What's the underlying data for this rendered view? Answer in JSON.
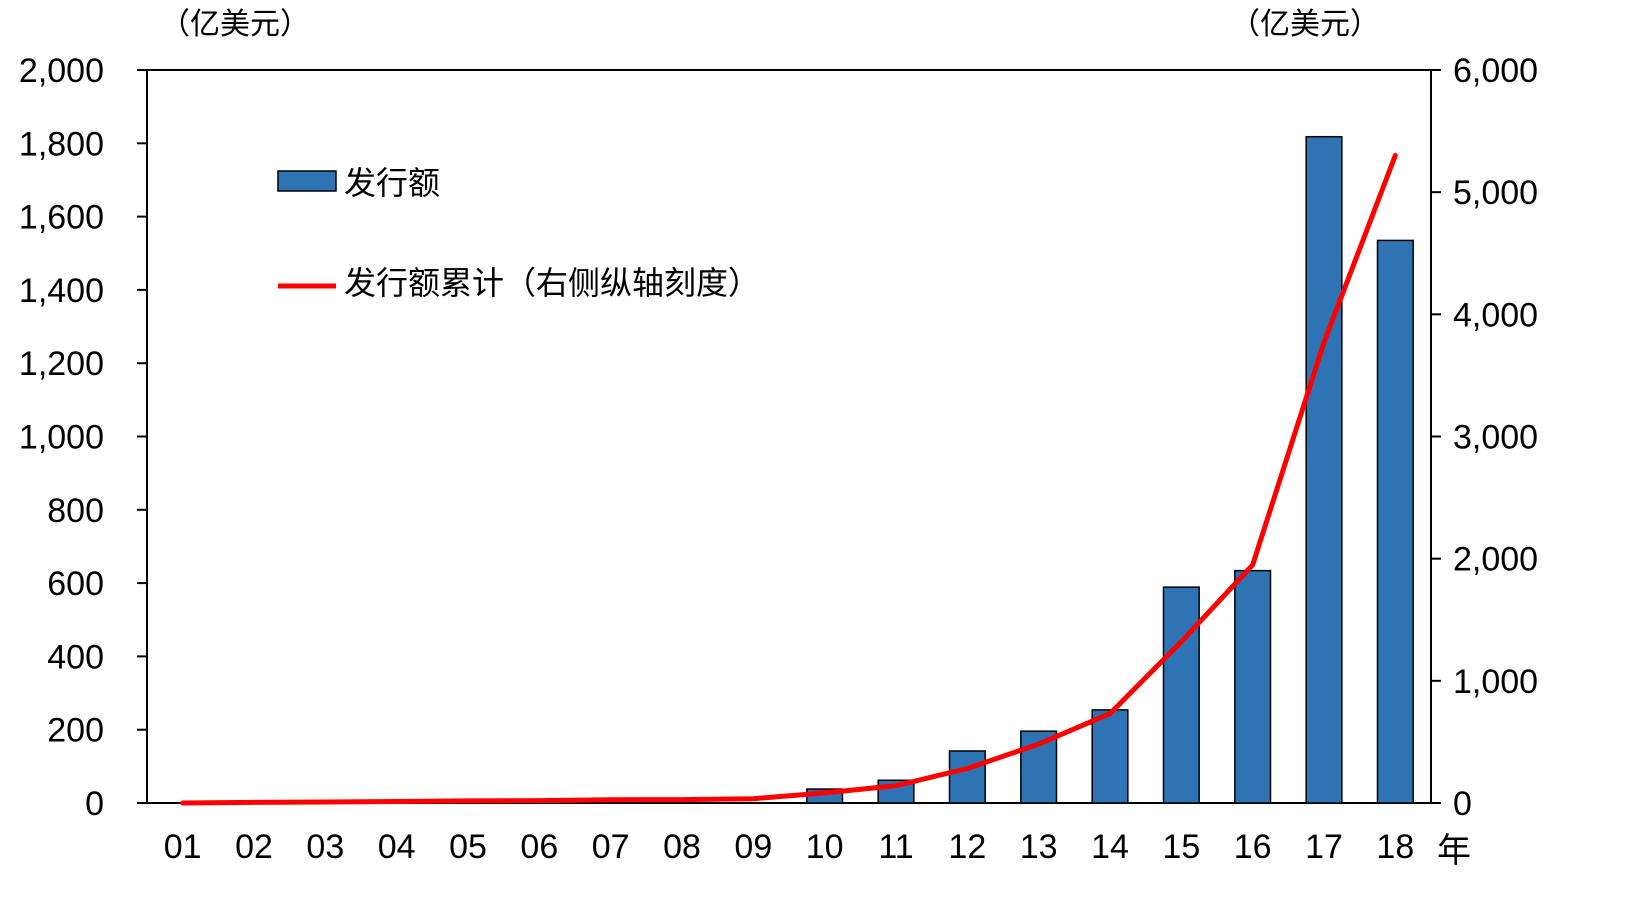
{
  "chart_data": {
    "type": "bar+line",
    "left_unit": "（亿美元）",
    "right_unit": "（亿美元）",
    "x_suffix": "年",
    "categories": [
      "01",
      "02",
      "03",
      "04",
      "05",
      "06",
      "07",
      "08",
      "09",
      "10",
      "11",
      "12",
      "13",
      "14",
      "15",
      "16",
      "17",
      "18"
    ],
    "y_left": {
      "min": 0,
      "max": 2000,
      "ticks": [
        0,
        200,
        400,
        600,
        800,
        1000,
        1200,
        1400,
        1600,
        1800,
        2000
      ],
      "tick_labels": [
        "0",
        "200",
        "400",
        "600",
        "800",
        "1,000",
        "1,200",
        "1,400",
        "1,600",
        "1,800",
        "2,000"
      ]
    },
    "y_right": {
      "min": 0,
      "max": 6000,
      "ticks": [
        0,
        1000,
        2000,
        3000,
        4000,
        5000,
        6000
      ],
      "tick_labels": [
        "0",
        "1,000",
        "2,000",
        "3,000",
        "4,000",
        "5,000",
        "6,000"
      ]
    },
    "series": [
      {
        "name": "发行额",
        "kind": "bar",
        "axis": "left",
        "color": "#2E74B5",
        "values": [
          0,
          0,
          0,
          0,
          0,
          0,
          0,
          0,
          0,
          38,
          62,
          142,
          196,
          254,
          589,
          634,
          1818,
          1535
        ]
      },
      {
        "name": "发行额累计（右侧纵轴刻度）",
        "kind": "line",
        "axis": "right",
        "color": "#FF0000",
        "values": [
          0,
          5,
          8,
          12,
          17,
          20,
          27,
          28,
          35,
          83,
          142,
          282,
          482,
          732,
          1320,
          1950,
          3770,
          5300
        ]
      }
    ],
    "legend": {
      "position": "top-left",
      "bar_label": "发行额",
      "line_label": "发行额累计（右侧纵轴刻度）"
    },
    "grid": false
  }
}
